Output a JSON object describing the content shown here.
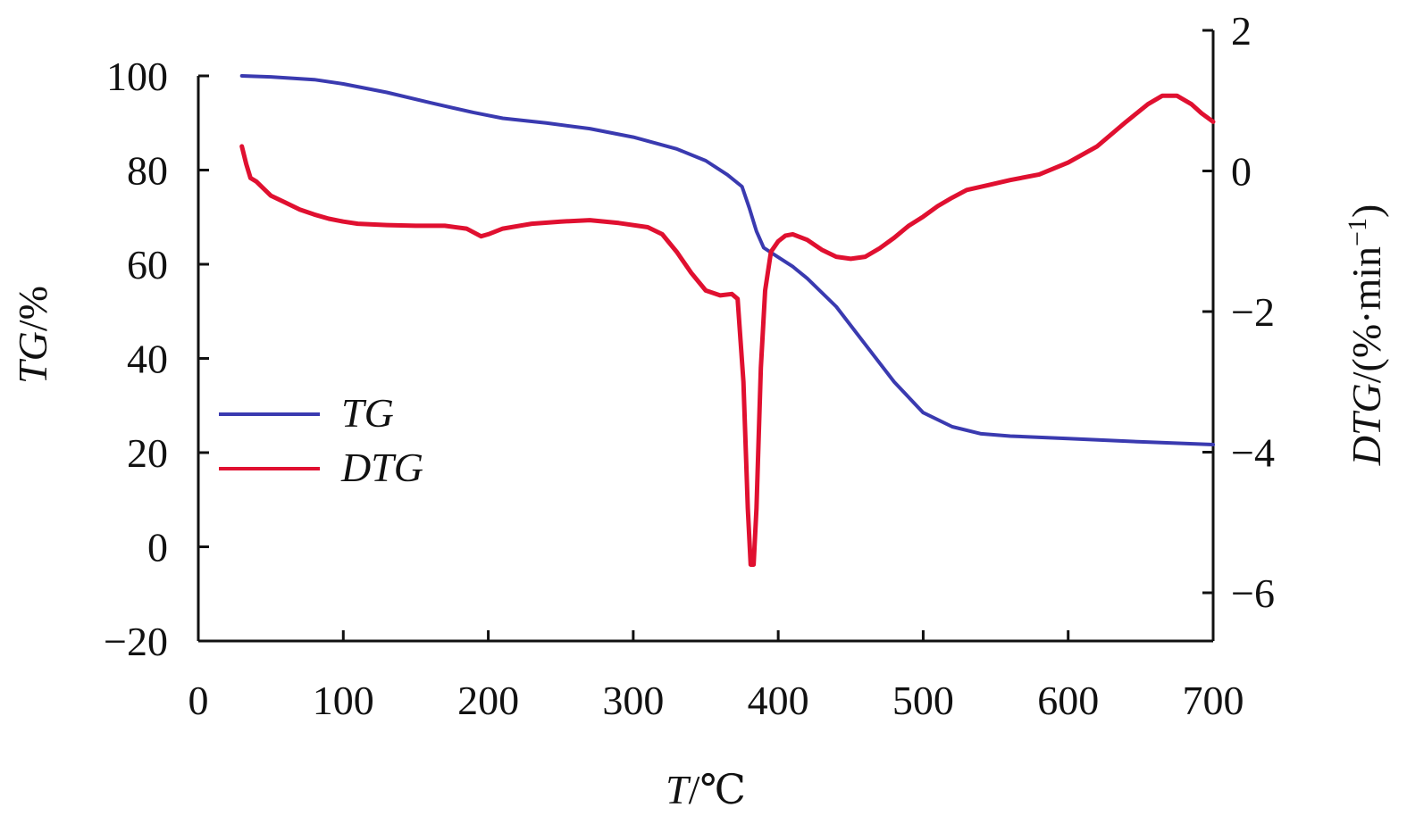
{
  "chart_data": {
    "type": "line",
    "xlabel": {
      "italic": "T",
      "unit": "/℃"
    },
    "ylabel_left": {
      "italic": "TG",
      "unit": "/%"
    },
    "ylabel_right": {
      "italic": "DTG",
      "unit": "/(%·min",
      "sup": "−1",
      "close": ")"
    },
    "xlim": [
      0,
      700
    ],
    "ylim_left": [
      -20,
      100
    ],
    "ylim_right": [
      -6,
      2
    ],
    "x_ticks": [
      "0",
      "100",
      "200",
      "300",
      "400",
      "500",
      "600",
      "700"
    ],
    "x_tick_values": [
      0,
      100,
      200,
      300,
      400,
      500,
      600,
      700
    ],
    "y_left_ticks": [
      "−20",
      "0",
      "20",
      "40",
      "60",
      "80",
      "100"
    ],
    "y_left_tick_values": [
      -20,
      0,
      20,
      40,
      60,
      80,
      100
    ],
    "y_right_ticks": [
      "−6",
      "−4",
      "−2",
      "0",
      "2"
    ],
    "y_right_tick_values": [
      -6,
      -4,
      -2,
      0,
      2
    ],
    "legend_position": "middle-left",
    "series": [
      {
        "name": "TG",
        "axis": "left",
        "color": "#3a3ab0",
        "points": [
          [
            30,
            100
          ],
          [
            50,
            99.8
          ],
          [
            80,
            99.2
          ],
          [
            100,
            98.3
          ],
          [
            130,
            96.5
          ],
          [
            160,
            94.3
          ],
          [
            190,
            92.2
          ],
          [
            210,
            91
          ],
          [
            240,
            90
          ],
          [
            270,
            88.8
          ],
          [
            300,
            87
          ],
          [
            330,
            84.5
          ],
          [
            350,
            82
          ],
          [
            365,
            79
          ],
          [
            375,
            76.5
          ],
          [
            380,
            72
          ],
          [
            385,
            67
          ],
          [
            390,
            63.5
          ],
          [
            400,
            61.5
          ],
          [
            410,
            59.5
          ],
          [
            420,
            57
          ],
          [
            440,
            51
          ],
          [
            460,
            43
          ],
          [
            480,
            35
          ],
          [
            500,
            28.5
          ],
          [
            520,
            25.5
          ],
          [
            540,
            24
          ],
          [
            560,
            23.5
          ],
          [
            600,
            23
          ],
          [
            650,
            22.3
          ],
          [
            700,
            21.7
          ]
        ]
      },
      {
        "name": "DTG",
        "axis": "right",
        "color": "#e01030",
        "points": [
          [
            30,
            0.35
          ],
          [
            33,
            0.1
          ],
          [
            36,
            -0.1
          ],
          [
            40,
            -0.15
          ],
          [
            45,
            -0.25
          ],
          [
            50,
            -0.35
          ],
          [
            60,
            -0.45
          ],
          [
            70,
            -0.55
          ],
          [
            80,
            -0.62
          ],
          [
            90,
            -0.68
          ],
          [
            100,
            -0.72
          ],
          [
            110,
            -0.75
          ],
          [
            130,
            -0.77
          ],
          [
            150,
            -0.78
          ],
          [
            170,
            -0.78
          ],
          [
            185,
            -0.82
          ],
          [
            195,
            -0.93
          ],
          [
            200,
            -0.9
          ],
          [
            210,
            -0.82
          ],
          [
            230,
            -0.75
          ],
          [
            250,
            -0.72
          ],
          [
            270,
            -0.7
          ],
          [
            290,
            -0.74
          ],
          [
            310,
            -0.8
          ],
          [
            320,
            -0.9
          ],
          [
            330,
            -1.15
          ],
          [
            340,
            -1.45
          ],
          [
            350,
            -1.7
          ],
          [
            360,
            -1.77
          ],
          [
            368,
            -1.75
          ],
          [
            372,
            -1.82
          ],
          [
            376,
            -3.0
          ],
          [
            379,
            -4.8
          ],
          [
            381,
            -5.6
          ],
          [
            383,
            -5.6
          ],
          [
            385,
            -4.8
          ],
          [
            388,
            -2.8
          ],
          [
            391,
            -1.7
          ],
          [
            395,
            -1.15
          ],
          [
            400,
            -1.0
          ],
          [
            405,
            -0.92
          ],
          [
            410,
            -0.9
          ],
          [
            420,
            -0.98
          ],
          [
            430,
            -1.12
          ],
          [
            440,
            -1.22
          ],
          [
            450,
            -1.25
          ],
          [
            460,
            -1.22
          ],
          [
            470,
            -1.1
          ],
          [
            480,
            -0.95
          ],
          [
            490,
            -0.78
          ],
          [
            500,
            -0.65
          ],
          [
            510,
            -0.5
          ],
          [
            520,
            -0.38
          ],
          [
            530,
            -0.27
          ],
          [
            545,
            -0.2
          ],
          [
            560,
            -0.13
          ],
          [
            580,
            -0.05
          ],
          [
            600,
            0.12
          ],
          [
            620,
            0.35
          ],
          [
            640,
            0.7
          ],
          [
            655,
            0.95
          ],
          [
            665,
            1.07
          ],
          [
            675,
            1.07
          ],
          [
            685,
            0.95
          ],
          [
            692,
            0.82
          ],
          [
            700,
            0.7
          ]
        ]
      }
    ]
  }
}
